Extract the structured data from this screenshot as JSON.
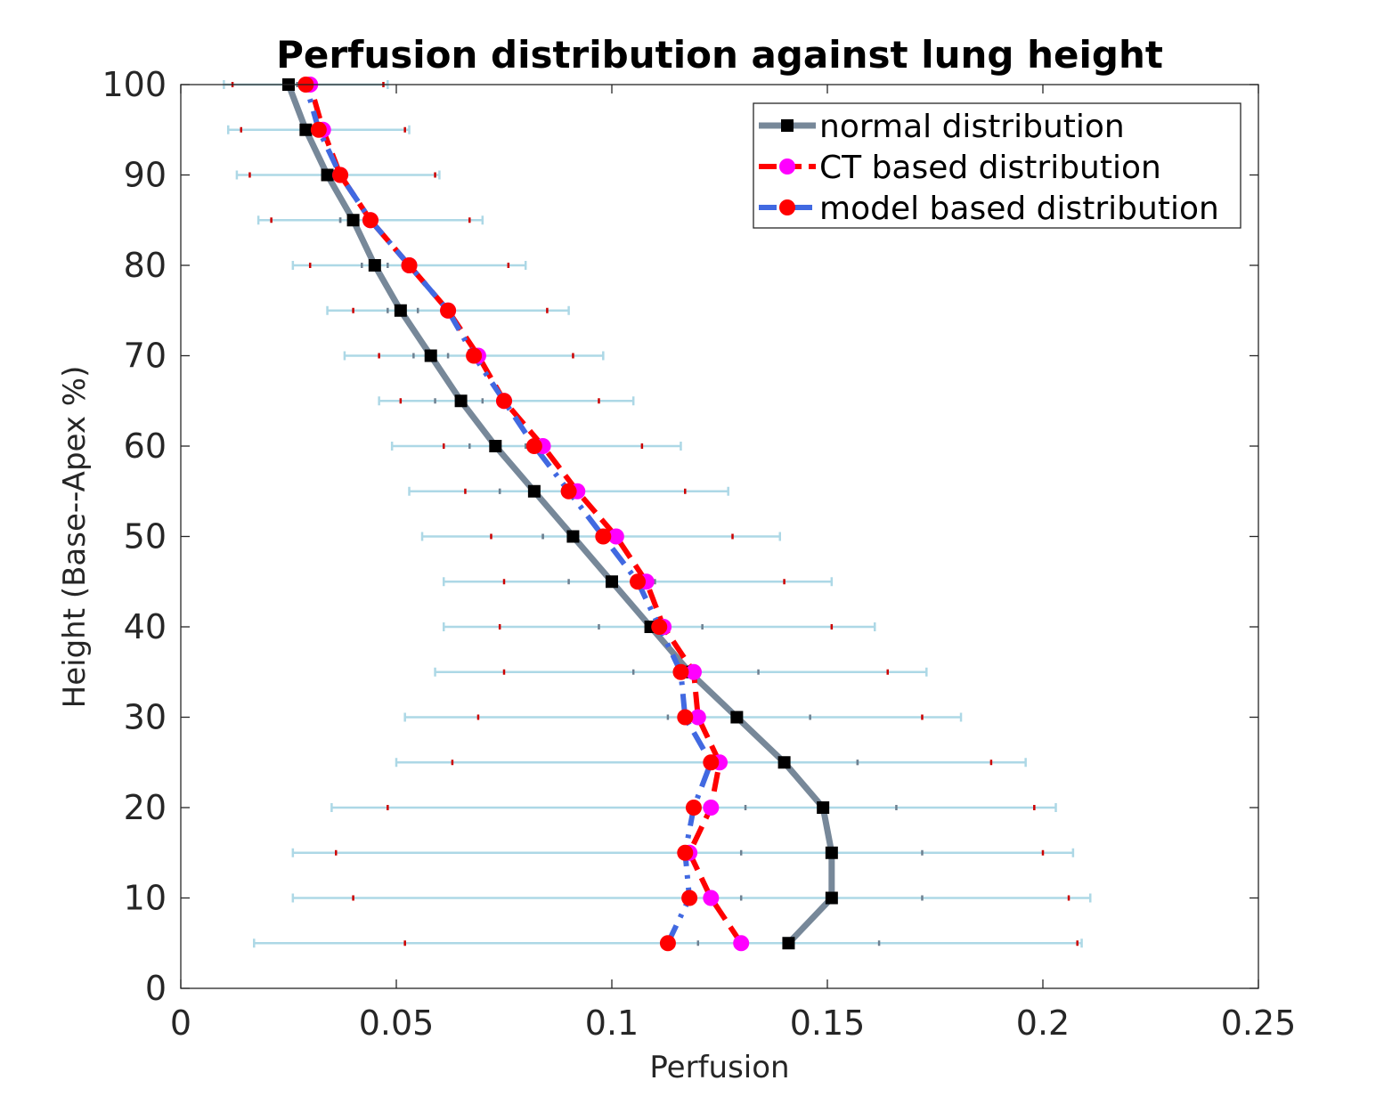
{
  "chart_data": {
    "type": "line",
    "title": "Perfusion distribution against lung height",
    "xlabel": "Perfusion",
    "ylabel": "Height (Base--Apex %)",
    "xlim": [
      0,
      0.25
    ],
    "ylim": [
      0,
      100
    ],
    "xticks": [
      0,
      0.05,
      0.1,
      0.15,
      0.2,
      0.25
    ],
    "xtick_labels": [
      "0",
      "0.05",
      "0.1",
      "0.15",
      "0.2",
      "0.25"
    ],
    "yticks": [
      0,
      10,
      20,
      30,
      40,
      50,
      60,
      70,
      80,
      90,
      100
    ],
    "ytick_labels": [
      "0",
      "10",
      "20",
      "30",
      "40",
      "50",
      "60",
      "70",
      "80",
      "90",
      "100"
    ],
    "grid": false,
    "legend_position": "top-right",
    "y": [
      5,
      10,
      15,
      20,
      25,
      30,
      35,
      40,
      45,
      50,
      55,
      60,
      65,
      70,
      75,
      80,
      85,
      90,
      95,
      100
    ],
    "series": [
      {
        "name": "normal distribution",
        "color": "#778899",
        "marker_color": "#000000",
        "line_style": "solid",
        "x": [
          0.141,
          0.151,
          0.151,
          0.149,
          0.14,
          0.129,
          0.118,
          0.109,
          0.1,
          0.091,
          0.082,
          0.073,
          0.065,
          0.058,
          0.051,
          0.045,
          0.04,
          0.034,
          0.029,
          0.025
        ],
        "err_low": [
          0.017,
          0.026,
          0.026,
          0.035,
          0.05,
          0.052,
          0.059,
          0.061,
          0.061,
          0.056,
          0.053,
          0.049,
          0.046,
          0.038,
          0.034,
          0.026,
          0.018,
          0.013,
          0.011,
          0.01
        ],
        "err_high": [
          0.209,
          0.211,
          0.207,
          0.203,
          0.196,
          0.181,
          0.173,
          0.161,
          0.151,
          0.139,
          0.127,
          0.116,
          0.105,
          0.098,
          0.09,
          0.08,
          0.07,
          0.06,
          0.053,
          0.048
        ]
      },
      {
        "name": "CT based distribution",
        "color": "#ff0000",
        "marker_color": "#ff00ff",
        "line_style": "dashed",
        "x": [
          0.13,
          0.123,
          0.118,
          0.123,
          0.125,
          0.12,
          0.119,
          0.112,
          0.108,
          0.101,
          0.092,
          0.084,
          0.075,
          0.069,
          0.062,
          0.053,
          0.044,
          0.037,
          0.033,
          0.03
        ],
        "err_low": [
          0.052,
          0.04,
          0.036,
          0.048,
          0.063,
          0.069,
          0.075,
          0.074,
          0.075,
          0.072,
          0.066,
          0.061,
          0.051,
          0.046,
          0.04,
          0.03,
          0.021,
          0.016,
          0.014,
          0.012
        ],
        "err_high": [
          0.208,
          0.206,
          0.2,
          0.198,
          0.188,
          0.172,
          0.164,
          0.151,
          0.14,
          0.128,
          0.117,
          0.107,
          0.097,
          0.091,
          0.085,
          0.076,
          0.067,
          0.059,
          0.052,
          0.047
        ]
      },
      {
        "name": "model based distribution",
        "color": "#4169e1",
        "marker_color": "#ff0000",
        "line_style": "dashdot",
        "x": [
          0.113,
          0.118,
          0.117,
          0.119,
          0.123,
          0.117,
          0.116,
          0.111,
          0.106,
          0.098,
          0.09,
          0.082,
          0.075,
          0.068,
          0.062,
          0.053,
          0.044,
          0.037,
          0.032,
          0.029
        ],
        "err_low": [
          0.12,
          0.13,
          0.13,
          0.131,
          0.157,
          0.113,
          0.105,
          0.097,
          0.09,
          0.084,
          0.074,
          0.067,
          0.059,
          0.054,
          0.048,
          0.042,
          0.037,
          0.035,
          0.033,
          0.027
        ],
        "err_high": [
          0.162,
          0.172,
          0.172,
          0.166,
          0.157,
          0.146,
          0.134,
          0.121,
          0.11,
          0.084,
          0.074,
          0.08,
          0.07,
          0.062,
          0.055,
          0.048,
          0.037,
          0.035,
          0.033,
          0.027
        ]
      }
    ]
  }
}
